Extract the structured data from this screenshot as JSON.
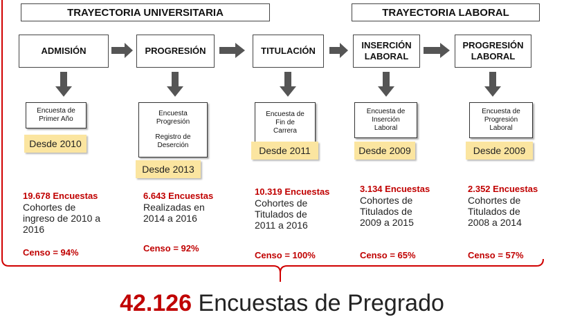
{
  "headers": [
    "TRAYECTORIA UNIVERSITARIA",
    "TRAYECTORIA LABORAL"
  ],
  "stages": [
    {
      "name": [
        "ADMISIÓN"
      ],
      "survey": [
        [
          "Encuesta de",
          "Primer Año"
        ]
      ],
      "since": "Desde 2010",
      "count": "19.678 Encuestas",
      "description": [
        "Cohortes de",
        "ingreso de 2010 a",
        "2016"
      ],
      "censo": "Censo = 94%"
    },
    {
      "name": [
        "PROGRESIÓN"
      ],
      "survey": [
        [
          "Encuesta",
          "Progresión"
        ],
        [
          "Registro de",
          "Deserción"
        ]
      ],
      "since": "Desde 2013",
      "count": "6.643 Encuestas",
      "description": [
        "Realizadas en",
        "2014 a 2016"
      ],
      "censo": "Censo = 92%"
    },
    {
      "name": [
        "TITULACIÓN"
      ],
      "survey": [
        [
          "Encuesta de",
          "Fin de",
          "Carrera"
        ]
      ],
      "since": "Desde 2011",
      "count": "10.319 Encuestas",
      "description": [
        "Cohortes de",
        "Titulados de",
        "2011 a 2016"
      ],
      "censo": "Censo = 100%"
    },
    {
      "name": [
        "INSERCIÓN",
        "LABORAL"
      ],
      "survey": [
        [
          "Encuesta de",
          "Inserción",
          "Laboral"
        ]
      ],
      "since": "Desde 2009",
      "count": "3.134 Encuestas",
      "description": [
        "Cohortes de",
        "Titulados de",
        "2009 a 2015"
      ],
      "censo": "Censo = 65%"
    },
    {
      "name": [
        "PROGRESIÓN",
        "LABORAL"
      ],
      "survey": [
        [
          "Encuesta de",
          "Progresión",
          "Laboral"
        ]
      ],
      "since": "Desde 2009",
      "count": "2.352 Encuestas",
      "description": [
        "Cohortes de",
        "Titulados de",
        "2008 a 2014"
      ],
      "censo": "Censo = 57%"
    }
  ],
  "total": {
    "number": "42.126",
    "text": "Encuestas de Pregrado"
  }
}
